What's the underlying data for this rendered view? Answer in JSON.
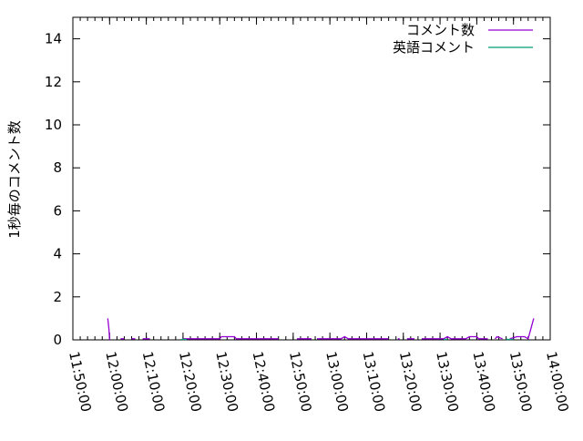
{
  "chart_data": {
    "type": "line",
    "title": "",
    "xlabel": "",
    "ylabel": "1秒毎のコメント数",
    "xlim": [
      "11:50:00",
      "14:00:00"
    ],
    "ylim": [
      0,
      15
    ],
    "x_ticks": [
      "11:50:00",
      "12:00:00",
      "12:10:00",
      "12:20:00",
      "12:30:00",
      "12:40:00",
      "12:50:00",
      "13:00:00",
      "13:10:00",
      "13:20:00",
      "13:30:00",
      "13:40:00",
      "13:50:00",
      "14:00:00"
    ],
    "y_ticks": [
      "0",
      "2",
      "4",
      "6",
      "8",
      "10",
      "12",
      "14"
    ],
    "grid": false,
    "legend": "top-right",
    "series": [
      {
        "name": "コメント数",
        "color": "#9400d3",
        "points": [
          [
            "11:59:30",
            1.0
          ],
          [
            "11:59:50",
            0.5
          ],
          [
            "12:00:00",
            0.0
          ],
          [
            "12:02:00",
            null
          ],
          [
            "12:03:00",
            0.05
          ],
          [
            "12:04:00",
            0.05
          ],
          [
            "12:05:00",
            null
          ],
          [
            "12:06:00",
            0.05
          ],
          [
            "12:07:00",
            0.05
          ],
          [
            "12:08:00",
            null
          ],
          [
            "12:09:00",
            0.05
          ],
          [
            "12:11:00",
            0.05
          ],
          [
            "12:12:00",
            null
          ],
          [
            "12:20:00",
            0.05
          ],
          [
            "12:30:00",
            0.05
          ],
          [
            "12:30:30",
            0.15
          ],
          [
            "12:34:00",
            0.15
          ],
          [
            "12:34:30",
            0.05
          ],
          [
            "12:46:00",
            0.05
          ],
          [
            "12:47:00",
            null
          ],
          [
            "12:51:00",
            0.05
          ],
          [
            "12:55:00",
            0.05
          ],
          [
            "12:56:00",
            null
          ],
          [
            "12:56:30",
            0.05
          ],
          [
            "13:03:00",
            0.05
          ],
          [
            "13:04:00",
            0.15
          ],
          [
            "13:05:00",
            0.05
          ],
          [
            "13:16:00",
            0.05
          ],
          [
            "13:17:00",
            null
          ],
          [
            "13:18:30",
            0.05
          ],
          [
            "13:19:00",
            0.05
          ],
          [
            "13:20:00",
            null
          ],
          [
            "13:21:00",
            0.05
          ],
          [
            "13:23:00",
            0.05
          ],
          [
            "13:24:00",
            null
          ],
          [
            "13:25:00",
            0.05
          ],
          [
            "13:31:00",
            0.05
          ],
          [
            "13:32:00",
            0.15
          ],
          [
            "13:33:00",
            0.05
          ],
          [
            "13:37:00",
            0.05
          ],
          [
            "13:38:00",
            0.15
          ],
          [
            "13:40:00",
            0.15
          ],
          [
            "13:40:30",
            0.05
          ],
          [
            "13:43:00",
            0.05
          ],
          [
            "13:44:00",
            null
          ],
          [
            "13:45:00",
            0.05
          ],
          [
            "13:45:30",
            0.15
          ],
          [
            "13:47:00",
            0.05
          ],
          [
            "13:48:00",
            null
          ],
          [
            "13:49:00",
            0.05
          ],
          [
            "13:51:00",
            0.15
          ],
          [
            "13:53:00",
            0.15
          ],
          [
            "13:54:00",
            0.05
          ],
          [
            "13:55:30",
            1.0
          ]
        ]
      },
      {
        "name": "英語コメント",
        "color": "#009e73",
        "points": [
          [
            "12:19:30",
            0.02
          ],
          [
            "12:21:00",
            0.02
          ],
          [
            "12:22:00",
            null
          ],
          [
            "13:31:00",
            0.02
          ],
          [
            "13:32:00",
            0.02
          ],
          [
            "13:33:00",
            null
          ],
          [
            "13:48:00",
            0.02
          ],
          [
            "13:50:00",
            0.02
          ]
        ]
      }
    ]
  }
}
